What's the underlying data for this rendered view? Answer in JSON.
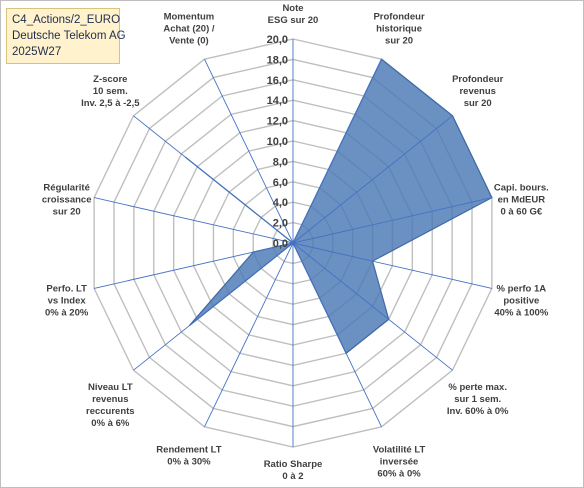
{
  "title_box": {
    "line1": "C4_Actions/2_EURO",
    "line2": "Deutsche Telekom AG",
    "line3": "2025W27"
  },
  "colors": {
    "series_fill": "#4a77b4",
    "series_stroke": "#3f6aa6",
    "grid": "#bfbfbf",
    "spoke": "#4472c4",
    "title_bg": "#fff2cc"
  },
  "chart_data": {
    "type": "radar",
    "range": [
      0,
      20
    ],
    "ticks": [
      "0,0",
      "2,0",
      "4,0",
      "6,0",
      "8,0",
      "10,0",
      "12,0",
      "14,0",
      "16,0",
      "18,0",
      "20,0"
    ],
    "axes": [
      "Note\nESG sur 20",
      "Profondeur\nhistorique\nsur 20",
      "Profondeur\nrevenus\nsur 20",
      "Capi. bours.\nen MdEUR\n0 à 60 G€",
      "% perfo 1A\npositive\n40% à 100%",
      "% perte max.\nsur 1 sem.\nInv. 60% à 0%",
      "Volatilité LT\ninversée\n60% à 0%",
      "Ratio Sharpe\n0 à 2",
      "Rendement LT\n0% à 30%",
      "Niveau LT\nrevenus\nreccurents\n0% à 6%",
      "Perfo. LT\nvs Index\n0% à 20%",
      "Régularité\ncroissance\nsur 20",
      "Z-score\n10 sem.\nInv. 2,5 à -2,5",
      "Momentum\nAchat (20) /\nVente (0)"
    ],
    "series": [
      {
        "values": [
          0,
          20,
          20,
          20,
          8,
          12,
          12,
          0,
          0,
          13,
          4,
          0,
          13.5,
          0
        ]
      }
    ]
  }
}
